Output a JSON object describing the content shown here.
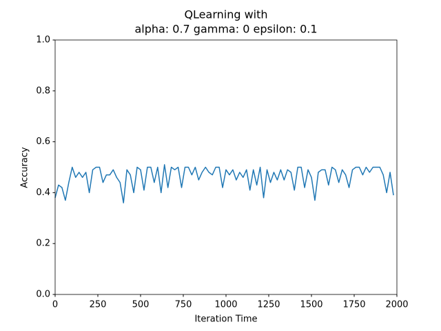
{
  "chart_data": {
    "type": "line",
    "title": [
      "QLearning with",
      "alpha: 0.7 gamma: 0 epsilon: 0.1"
    ],
    "xlabel": "Iteration Time",
    "ylabel": "Accuracy",
    "x": [
      0,
      20,
      40,
      60,
      80,
      100,
      120,
      140,
      160,
      180,
      200,
      220,
      240,
      260,
      280,
      300,
      320,
      340,
      360,
      380,
      400,
      420,
      440,
      460,
      480,
      500,
      520,
      540,
      560,
      580,
      600,
      620,
      640,
      660,
      680,
      700,
      720,
      740,
      760,
      780,
      800,
      820,
      840,
      860,
      880,
      900,
      920,
      940,
      960,
      980,
      1000,
      1020,
      1040,
      1060,
      1080,
      1100,
      1120,
      1140,
      1160,
      1180,
      1200,
      1220,
      1240,
      1260,
      1280,
      1300,
      1320,
      1340,
      1360,
      1380,
      1400,
      1420,
      1440,
      1460,
      1480,
      1500,
      1520,
      1540,
      1560,
      1580,
      1600,
      1620,
      1640,
      1660,
      1680,
      1700,
      1720,
      1740,
      1760,
      1780,
      1800,
      1820,
      1840,
      1860,
      1880,
      1900,
      1920,
      1940,
      1960,
      1980
    ],
    "series": [
      {
        "name": "accuracy",
        "color": "#1f77b4",
        "values": [
          0.38,
          0.43,
          0.42,
          0.37,
          0.44,
          0.5,
          0.46,
          0.48,
          0.46,
          0.48,
          0.4,
          0.49,
          0.5,
          0.5,
          0.44,
          0.47,
          0.47,
          0.49,
          0.46,
          0.44,
          0.36,
          0.49,
          0.47,
          0.4,
          0.5,
          0.49,
          0.41,
          0.5,
          0.5,
          0.44,
          0.5,
          0.4,
          0.51,
          0.42,
          0.5,
          0.49,
          0.5,
          0.42,
          0.5,
          0.5,
          0.47,
          0.5,
          0.45,
          0.48,
          0.5,
          0.48,
          0.47,
          0.5,
          0.5,
          0.42,
          0.49,
          0.47,
          0.49,
          0.45,
          0.48,
          0.46,
          0.49,
          0.41,
          0.49,
          0.43,
          0.5,
          0.38,
          0.49,
          0.44,
          0.48,
          0.45,
          0.49,
          0.45,
          0.49,
          0.48,
          0.41,
          0.5,
          0.5,
          0.42,
          0.49,
          0.46,
          0.37,
          0.48,
          0.49,
          0.49,
          0.43,
          0.5,
          0.49,
          0.44,
          0.49,
          0.47,
          0.42,
          0.49,
          0.5,
          0.5,
          0.47,
          0.5,
          0.48,
          0.5,
          0.5,
          0.5,
          0.47,
          0.4,
          0.48,
          0.39
        ]
      }
    ],
    "xlim": [
      0,
      2000
    ],
    "xticks": [
      0,
      250,
      500,
      750,
      1000,
      1250,
      1500,
      1750,
      2000
    ],
    "ylim": [
      0,
      1
    ],
    "yticks": [
      {
        "value": 0,
        "label": "0.0"
      },
      0.2,
      0.4,
      0.6,
      0.8,
      {
        "value": 1,
        "label": "1.0"
      }
    ],
    "grid": false
  }
}
